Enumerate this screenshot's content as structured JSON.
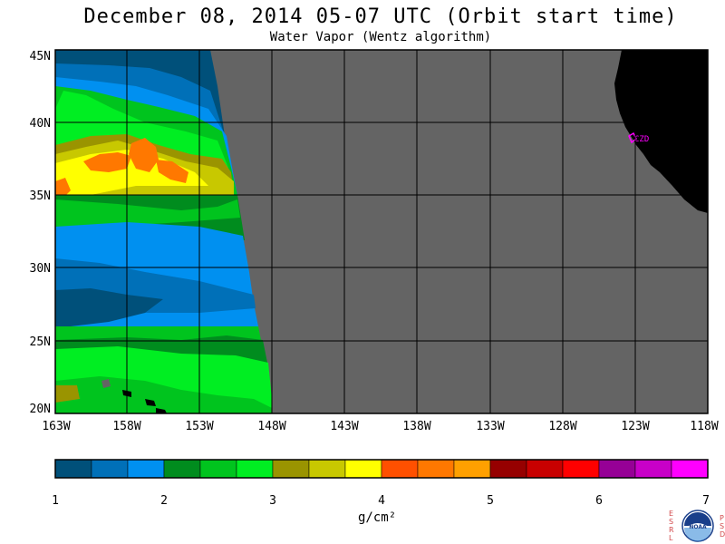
{
  "title": "December 08, 2014  05-07 UTC  (Orbit start time)",
  "subtitle": "Water Vapor (Wentz algorithm)",
  "map": {
    "lat_labels": [
      "45N",
      "40N",
      "35N",
      "30N",
      "25N",
      "20N"
    ],
    "lon_labels": [
      "163W",
      "158W",
      "153W",
      "148W",
      "143W",
      "138W",
      "133W",
      "128W",
      "123W",
      "118W"
    ],
    "station_label": "CZD"
  },
  "colorbar": {
    "ticks": [
      "1",
      "2",
      "3",
      "4",
      "5",
      "6",
      "7"
    ],
    "unit": "g/cm²",
    "colors": [
      "#00507a",
      "#0070b8",
      "#0090f0",
      "#008c1e",
      "#00c41e",
      "#00ee22",
      "#9a9400",
      "#c8c800",
      "#ffff00",
      "#ff5000",
      "#ff7800",
      "#ffa000",
      "#960000",
      "#c80000",
      "#ff0000",
      "#960096",
      "#c800c8",
      "#ff00ff"
    ]
  },
  "logo": {
    "left_letters": [
      "E",
      "S",
      "R",
      "L"
    ],
    "right_letters": [
      "P",
      "S",
      "D"
    ],
    "center_text": "NOAA"
  }
}
